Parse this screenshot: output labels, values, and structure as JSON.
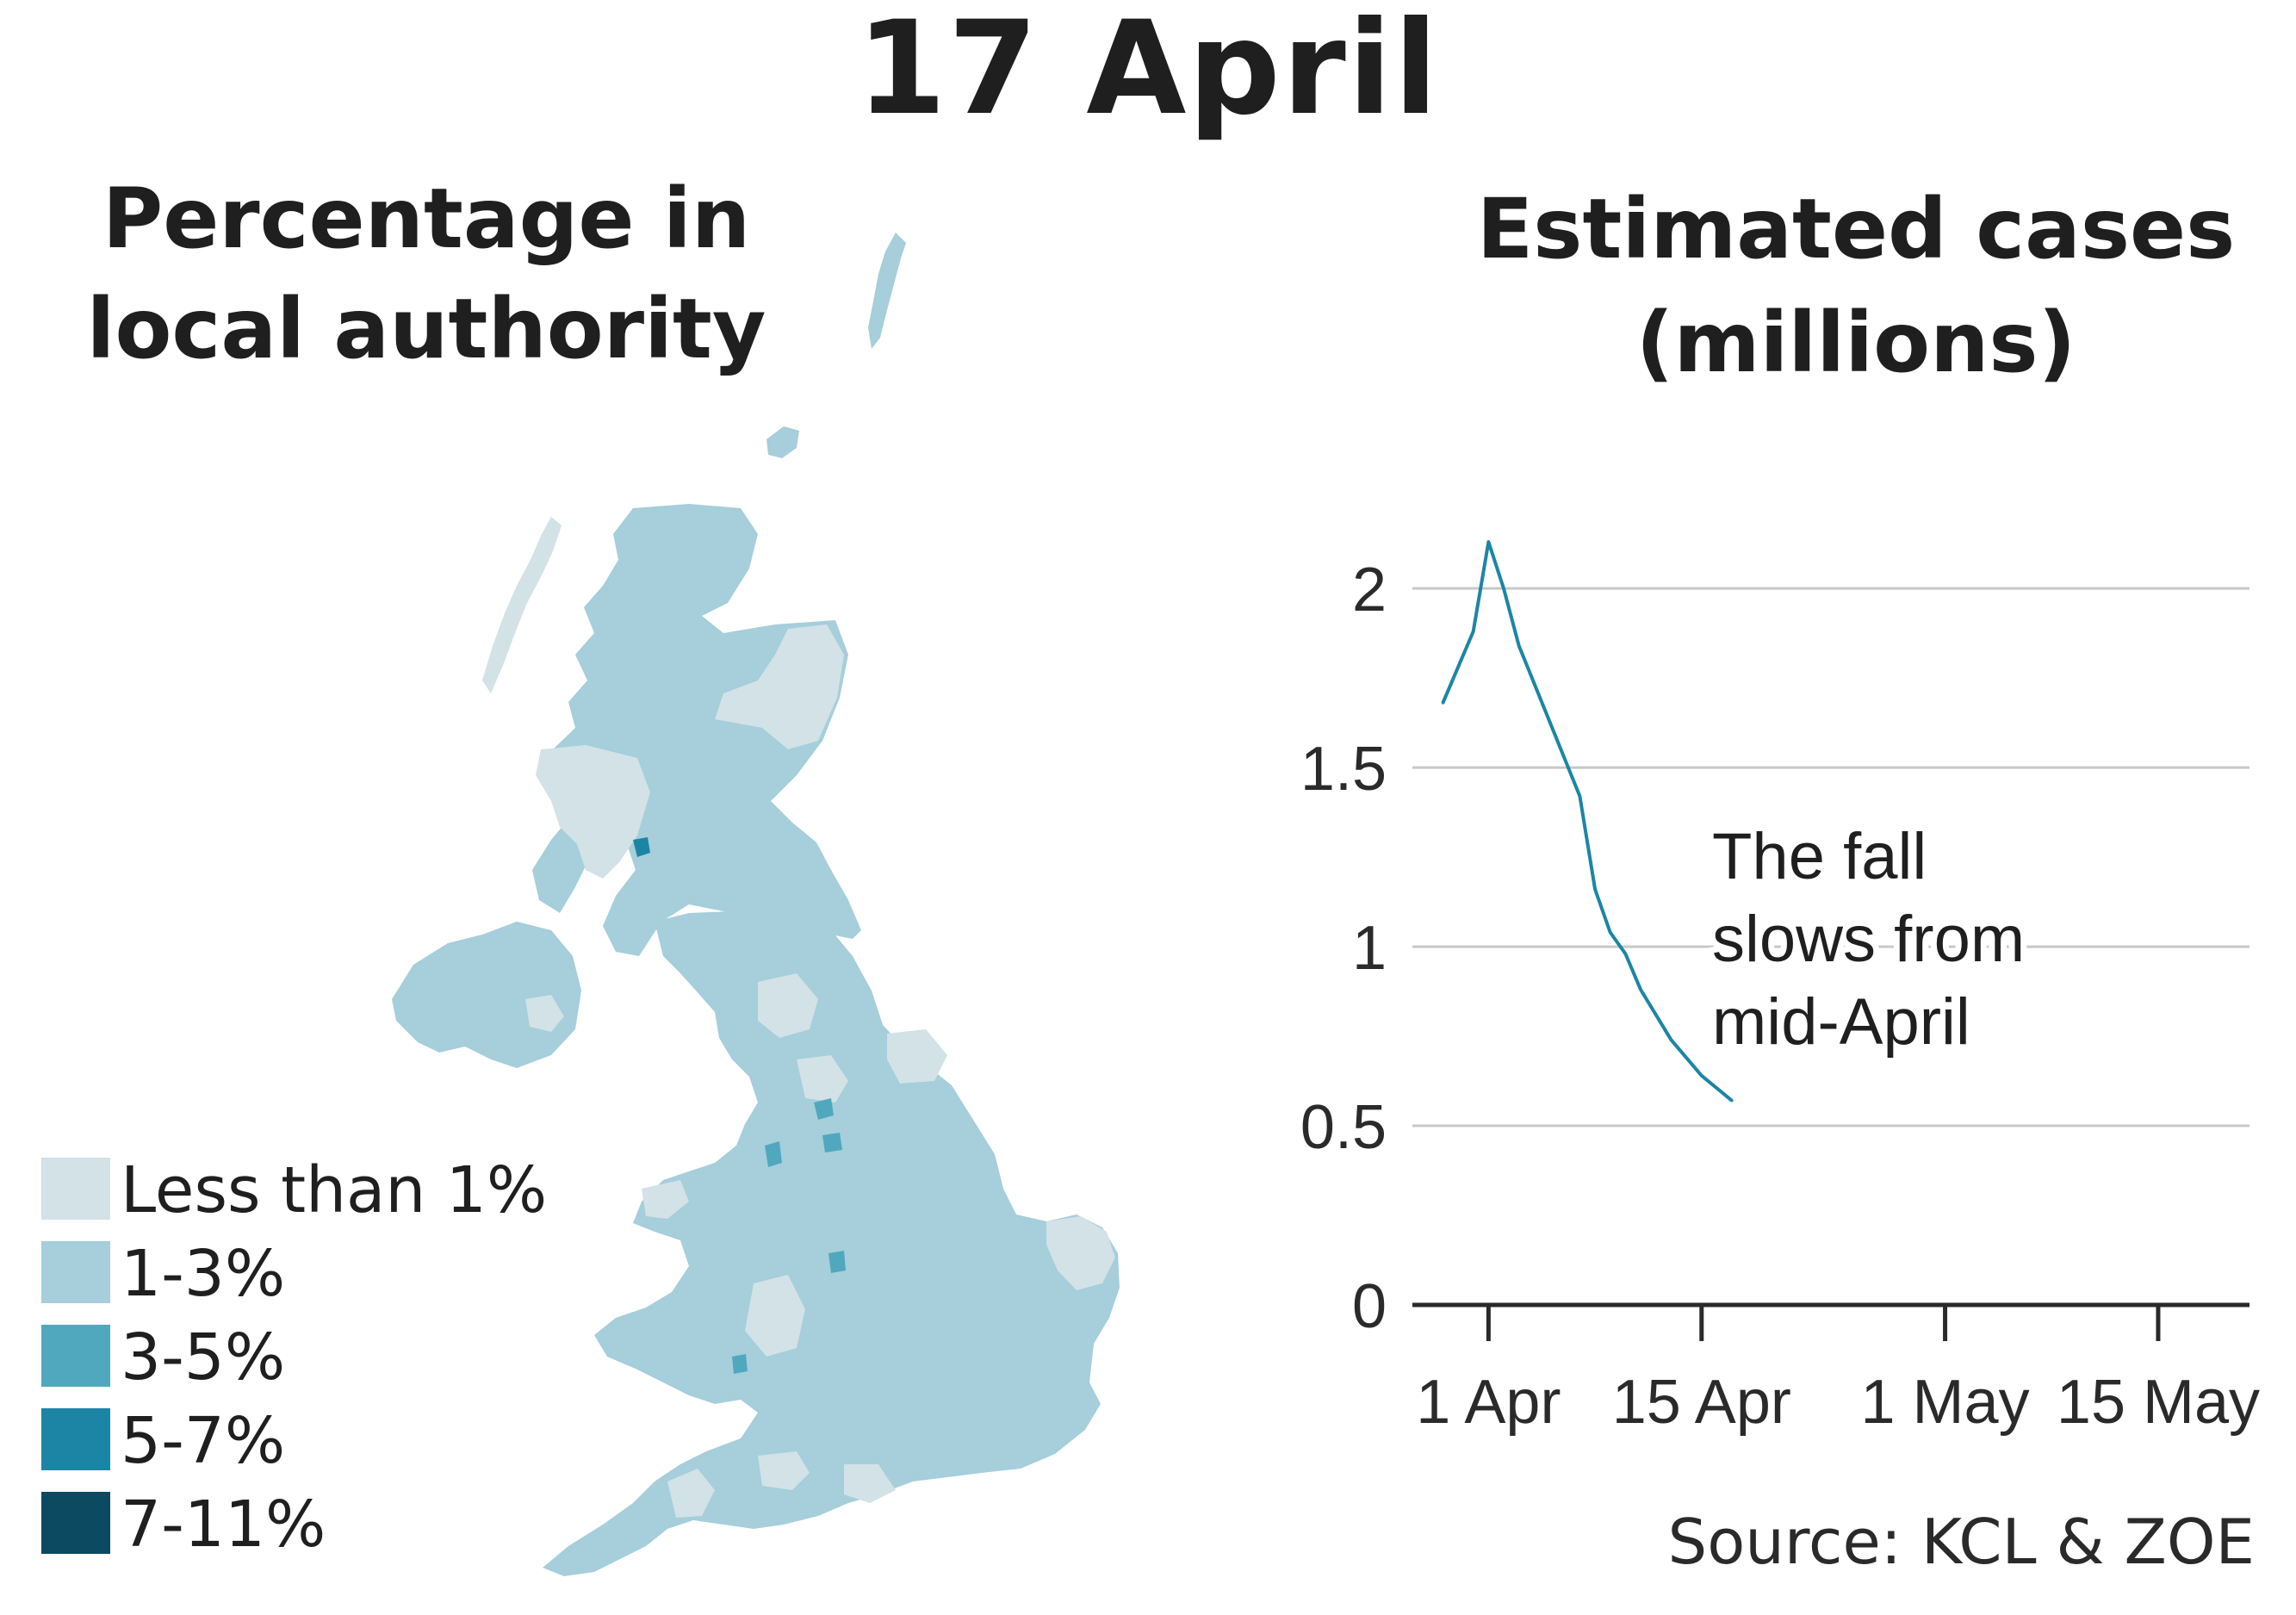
{
  "title": "17 April",
  "map": {
    "title_line1": "Percentage in",
    "title_line2": "local authority",
    "legend": [
      {
        "label": "Less than 1%",
        "color": "#d2e2e6"
      },
      {
        "label": "1-3%",
        "color": "#a6cedb"
      },
      {
        "label": "3-5%",
        "color": "#50a8bf"
      },
      {
        "label": "5-7%",
        "color": "#1c85a5"
      },
      {
        "label": "7-11%",
        "color": "#0c4a62"
      }
    ]
  },
  "chart_data": {
    "type": "line",
    "title_line1": "Estimated cases",
    "title_line2": "(millions)",
    "xlabel": "",
    "ylabel": "",
    "ylim": [
      0,
      2.2
    ],
    "yticks": [
      0,
      0.5,
      1,
      1.5,
      2
    ],
    "ytick_labels": [
      "0",
      "0.5",
      "1",
      "1.5",
      "2"
    ],
    "xticks": [
      "2021-04-01",
      "2021-04-15",
      "2021-05-01",
      "2021-05-15"
    ],
    "xtick_labels": [
      "1 Apr",
      "15 Apr",
      "1 May",
      "15 May"
    ],
    "xlim": [
      "2021-03-27",
      "2021-05-21"
    ],
    "grid": true,
    "series": [
      {
        "color": "#1c85a5",
        "points": [
          {
            "x": "2021-03-29",
            "y": 1.68
          },
          {
            "x": "2021-03-31",
            "y": 1.88
          },
          {
            "x": "2021-04-01",
            "y": 2.13
          },
          {
            "x": "2021-04-02",
            "y": 2.0
          },
          {
            "x": "2021-04-03",
            "y": 1.84
          },
          {
            "x": "2021-04-05",
            "y": 1.63
          },
          {
            "x": "2021-04-07",
            "y": 1.42
          },
          {
            "x": "2021-04-08",
            "y": 1.16
          },
          {
            "x": "2021-04-09",
            "y": 1.04
          },
          {
            "x": "2021-04-10",
            "y": 0.98
          },
          {
            "x": "2021-04-11",
            "y": 0.88
          },
          {
            "x": "2021-04-13",
            "y": 0.74
          },
          {
            "x": "2021-04-15",
            "y": 0.64
          },
          {
            "x": "2021-04-17",
            "y": 0.57
          }
        ]
      }
    ],
    "annotation": [
      "The fall",
      "slows from",
      "mid-April"
    ]
  },
  "source": "Source: KCL & ZOE"
}
